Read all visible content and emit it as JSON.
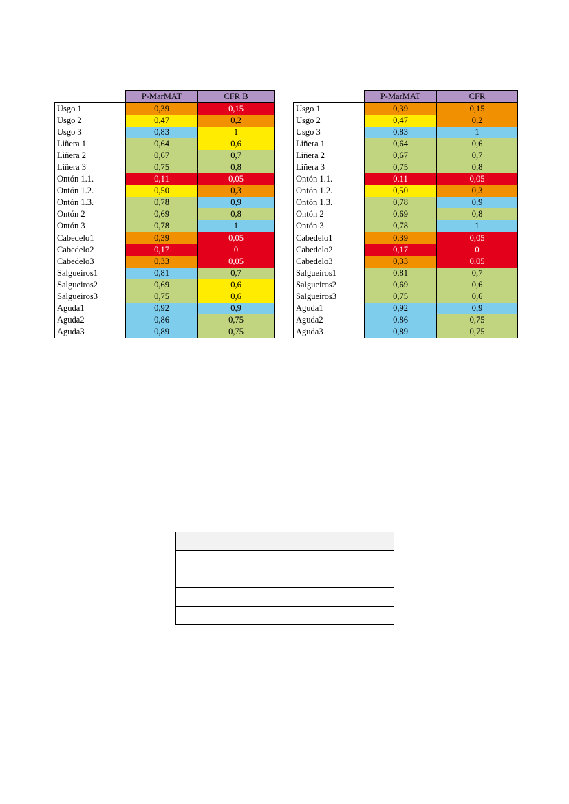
{
  "colors": {
    "red": "#e3001b",
    "orange": "#f19000",
    "yellow": "#ffec00",
    "blue": "#7fcdec",
    "green": "#c1d47f",
    "header_purple": "#b294c7"
  },
  "table_left": {
    "headers": [
      "P-MarMAT",
      "CFR B"
    ],
    "rows": [
      {
        "label": "Usgo 1",
        "v1": "0,39",
        "c1": "orange",
        "v2": "0,15",
        "c2": "red"
      },
      {
        "label": "Usgo 2",
        "v1": "0,47",
        "c1": "yellow",
        "v2": "0,2",
        "c2": "orange"
      },
      {
        "label": "Usgo 3",
        "v1": "0,83",
        "c1": "blue",
        "v2": "1",
        "c2": "yellow"
      },
      {
        "label": "Liñera 1",
        "v1": "0,64",
        "c1": "green",
        "v2": "0,6",
        "c2": "yellow"
      },
      {
        "label": "Liñera 2",
        "v1": "0,67",
        "c1": "green",
        "v2": "0,7",
        "c2": "green"
      },
      {
        "label": "Liñera 3",
        "v1": "0,75",
        "c1": "green",
        "v2": "0,8",
        "c2": "green"
      },
      {
        "label": "Ontón 1.1.",
        "v1": "0,11",
        "c1": "red",
        "v2": "0,05",
        "c2": "red"
      },
      {
        "label": "Ontón 1.2.",
        "v1": "0,50",
        "c1": "yellow",
        "v2": "0,3",
        "c2": "orange"
      },
      {
        "label": "Ontón 1.3.",
        "v1": "0,78",
        "c1": "green",
        "v2": "0,9",
        "c2": "blue"
      },
      {
        "label": "Ontón 2",
        "v1": "0,69",
        "c1": "green",
        "v2": "0,8",
        "c2": "green"
      },
      {
        "label": "Ontón 3",
        "v1": "0,78",
        "c1": "green",
        "v2": "1",
        "c2": "blue"
      },
      {
        "label": "Cabedelo1",
        "v1": "0,39",
        "c1": "orange",
        "v2": "0,05",
        "c2": "red"
      },
      {
        "label": "Cabedelo2",
        "v1": "0,17",
        "c1": "red",
        "v2": "0",
        "c2": "red"
      },
      {
        "label": "Cabedelo3",
        "v1": "0,33",
        "c1": "orange",
        "v2": "0,05",
        "c2": "red"
      },
      {
        "label": "Salgueiros1",
        "v1": "0,81",
        "c1": "blue",
        "v2": "0,7",
        "c2": "green"
      },
      {
        "label": "Salgueiros2",
        "v1": "0,69",
        "c1": "green",
        "v2": "0,6",
        "c2": "yellow"
      },
      {
        "label": "Salgueiros3",
        "v1": "0,75",
        "c1": "green",
        "v2": "0,6",
        "c2": "yellow"
      },
      {
        "label": "Aguda1",
        "v1": "0,92",
        "c1": "blue",
        "v2": "0,9",
        "c2": "blue"
      },
      {
        "label": "Aguda2",
        "v1": "0,86",
        "c1": "blue",
        "v2": "0,75",
        "c2": "green"
      },
      {
        "label": "Aguda3",
        "v1": "0,89",
        "c1": "blue",
        "v2": "0,75",
        "c2": "green"
      }
    ]
  },
  "table_right": {
    "headers": [
      "P-MarMAT",
      "CFR"
    ],
    "rows": [
      {
        "label": "Usgo 1",
        "v1": "0,39",
        "c1": "orange",
        "v2": "0,15",
        "c2": "orange"
      },
      {
        "label": "Usgo 2",
        "v1": "0,47",
        "c1": "yellow",
        "v2": "0,2",
        "c2": "orange"
      },
      {
        "label": "Usgo 3",
        "v1": "0,83",
        "c1": "blue",
        "v2": "1",
        "c2": "blue"
      },
      {
        "label": "Liñera 1",
        "v1": "0,64",
        "c1": "green",
        "v2": "0,6",
        "c2": "green"
      },
      {
        "label": "Liñera 2",
        "v1": "0,67",
        "c1": "green",
        "v2": "0,7",
        "c2": "green"
      },
      {
        "label": "Liñera 3",
        "v1": "0,75",
        "c1": "green",
        "v2": "0,8",
        "c2": "green"
      },
      {
        "label": "Ontón 1.1.",
        "v1": "0,11",
        "c1": "red",
        "v2": "0,05",
        "c2": "red"
      },
      {
        "label": "Ontón 1.2.",
        "v1": "0,50",
        "c1": "yellow",
        "v2": "0,3",
        "c2": "orange"
      },
      {
        "label": "Ontón 1.3.",
        "v1": "0,78",
        "c1": "green",
        "v2": "0,9",
        "c2": "blue"
      },
      {
        "label": "Ontón 2",
        "v1": "0,69",
        "c1": "green",
        "v2": "0,8",
        "c2": "green"
      },
      {
        "label": "Ontón 3",
        "v1": "0,78",
        "c1": "green",
        "v2": "1",
        "c2": "blue"
      },
      {
        "label": "Cabedelo1",
        "v1": "0,39",
        "c1": "orange",
        "v2": "0,05",
        "c2": "red"
      },
      {
        "label": "Cabedelo2",
        "v1": "0,17",
        "c1": "red",
        "v2": "0",
        "c2": "red"
      },
      {
        "label": "Cabedelo3",
        "v1": "0,33",
        "c1": "orange",
        "v2": "0,05",
        "c2": "red"
      },
      {
        "label": "Salgueiros1",
        "v1": "0,81",
        "c1": "green",
        "v2": "0,7",
        "c2": "green"
      },
      {
        "label": "Salgueiros2",
        "v1": "0,69",
        "c1": "green",
        "v2": "0,6",
        "c2": "green"
      },
      {
        "label": "Salgueiros3",
        "v1": "0,75",
        "c1": "green",
        "v2": "0,6",
        "c2": "green"
      },
      {
        "label": "Aguda1",
        "v1": "0,92",
        "c1": "blue",
        "v2": "0,9",
        "c2": "blue"
      },
      {
        "label": "Aguda2",
        "v1": "0,86",
        "c1": "blue",
        "v2": "0,75",
        "c2": "green"
      },
      {
        "label": "Aguda3",
        "v1": "0,89",
        "c1": "blue",
        "v2": "0,75",
        "c2": "green"
      }
    ]
  }
}
